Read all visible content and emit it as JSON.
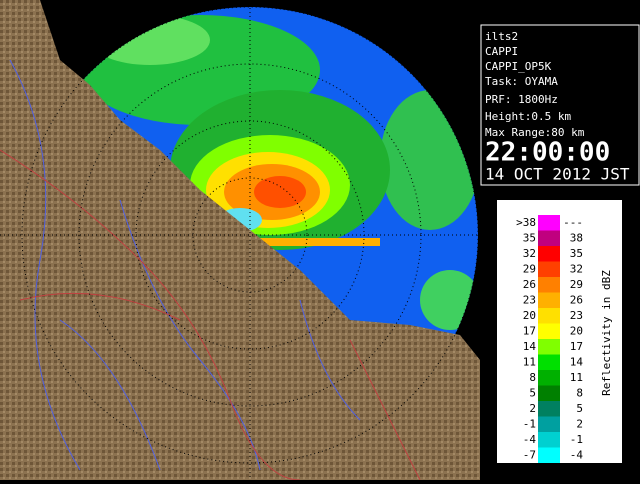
{
  "info": {
    "station": "ilts2",
    "product": "CAPPI",
    "product_name": "CAPPI_OP5K",
    "task": "Task: OYAMA",
    "prf": "PRF: 1800Hz",
    "height": "Height:0.5 km",
    "max_range": "Max Range:80 km",
    "time": "22:00:00",
    "date": "14 OCT 2012 JST"
  },
  "legend": {
    "title": "Reflectivity in dBZ",
    "rows": [
      {
        "low": ">38",
        "high": "---",
        "color": "#ff00ff"
      },
      {
        "low": "35",
        "high": "38",
        "color": "#c0007f"
      },
      {
        "low": "32",
        "high": "35",
        "color": "#ff0000"
      },
      {
        "low": "29",
        "high": "32",
        "color": "#ff4000"
      },
      {
        "low": "26",
        "high": "29",
        "color": "#ff8000"
      },
      {
        "low": "23",
        "high": "26",
        "color": "#ffb000"
      },
      {
        "low": "20",
        "high": "23",
        "color": "#ffe000"
      },
      {
        "low": "17",
        "high": "20",
        "color": "#ffff00"
      },
      {
        "low": "14",
        "high": "17",
        "color": "#80ff00"
      },
      {
        "low": "11",
        "high": "14",
        "color": "#00e000"
      },
      {
        "low": "8",
        "high": "11",
        "color": "#00b000"
      },
      {
        "low": "5",
        "high": "8",
        "color": "#008000"
      },
      {
        "low": "2",
        "high": "5",
        "color": "#008060"
      },
      {
        "low": "-1",
        "high": "2",
        "color": "#00a0a0"
      },
      {
        "low": "-4",
        "high": "-1",
        "color": "#00d0d0"
      },
      {
        "low": "-7",
        "high": "-4",
        "color": "#00ffff"
      }
    ]
  }
}
